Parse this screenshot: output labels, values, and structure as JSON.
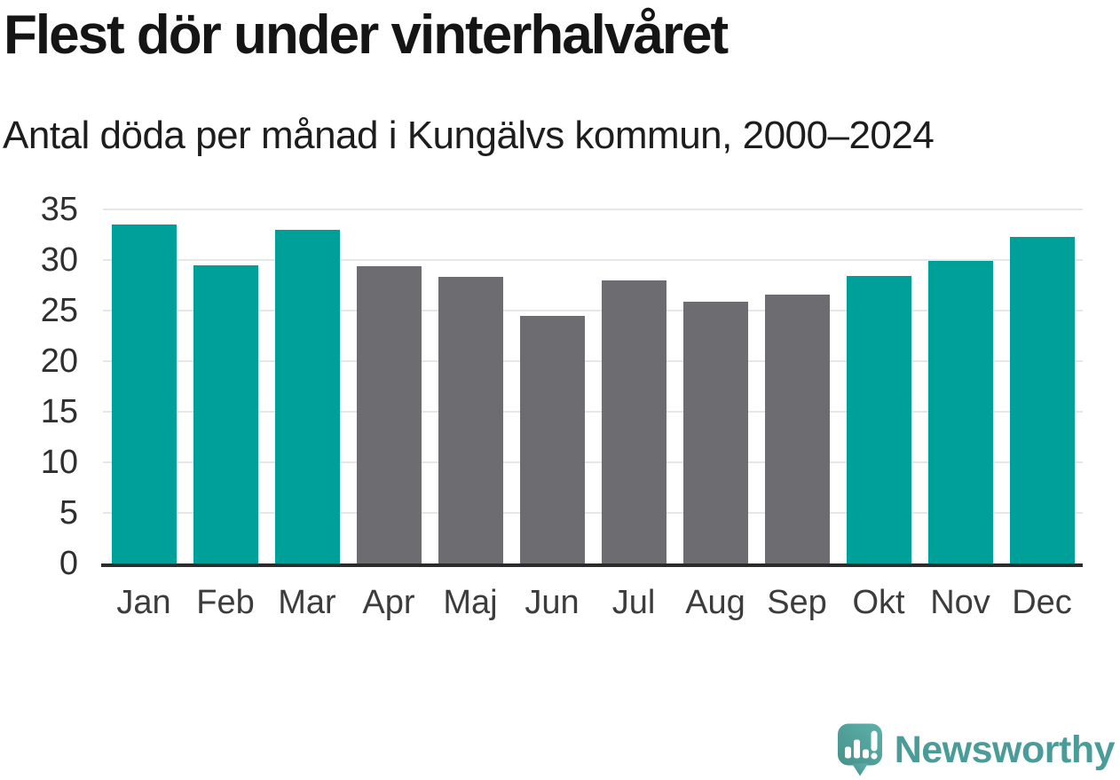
{
  "chart_data": {
    "type": "bar",
    "title": "Flest dör under vinterhalvåret",
    "subtitle": "Antal döda per månad i Kungälvs kommun, 2000–2024",
    "categories": [
      "Jan",
      "Feb",
      "Mar",
      "Apr",
      "Maj",
      "Jun",
      "Jul",
      "Aug",
      "Sep",
      "Okt",
      "Nov",
      "Dec"
    ],
    "values": [
      33.5,
      29.5,
      33.0,
      29.4,
      28.3,
      24.5,
      28.0,
      25.9,
      26.6,
      28.4,
      29.9,
      32.3
    ],
    "highlighted": [
      true,
      true,
      true,
      false,
      false,
      false,
      false,
      false,
      false,
      true,
      true,
      true
    ],
    "highlighted_meaning": "winter half-year months",
    "colors": {
      "highlight": "#00a09a",
      "default": "#6d6d71",
      "grid": "#e7e7e7",
      "axis": "#2c2c2c",
      "tick_text": "#2f2f2f"
    },
    "xlabel": "",
    "ylabel": "",
    "ylim": [
      0,
      35
    ],
    "yticks": [
      0,
      5,
      10,
      15,
      20,
      25,
      30,
      35
    ],
    "grid": true,
    "legend": "none"
  },
  "footer": {
    "brand": "Newsworthy",
    "brand_color": "#4a9c99",
    "logo_icon": "speech-bubble-bar-chart-icon"
  }
}
